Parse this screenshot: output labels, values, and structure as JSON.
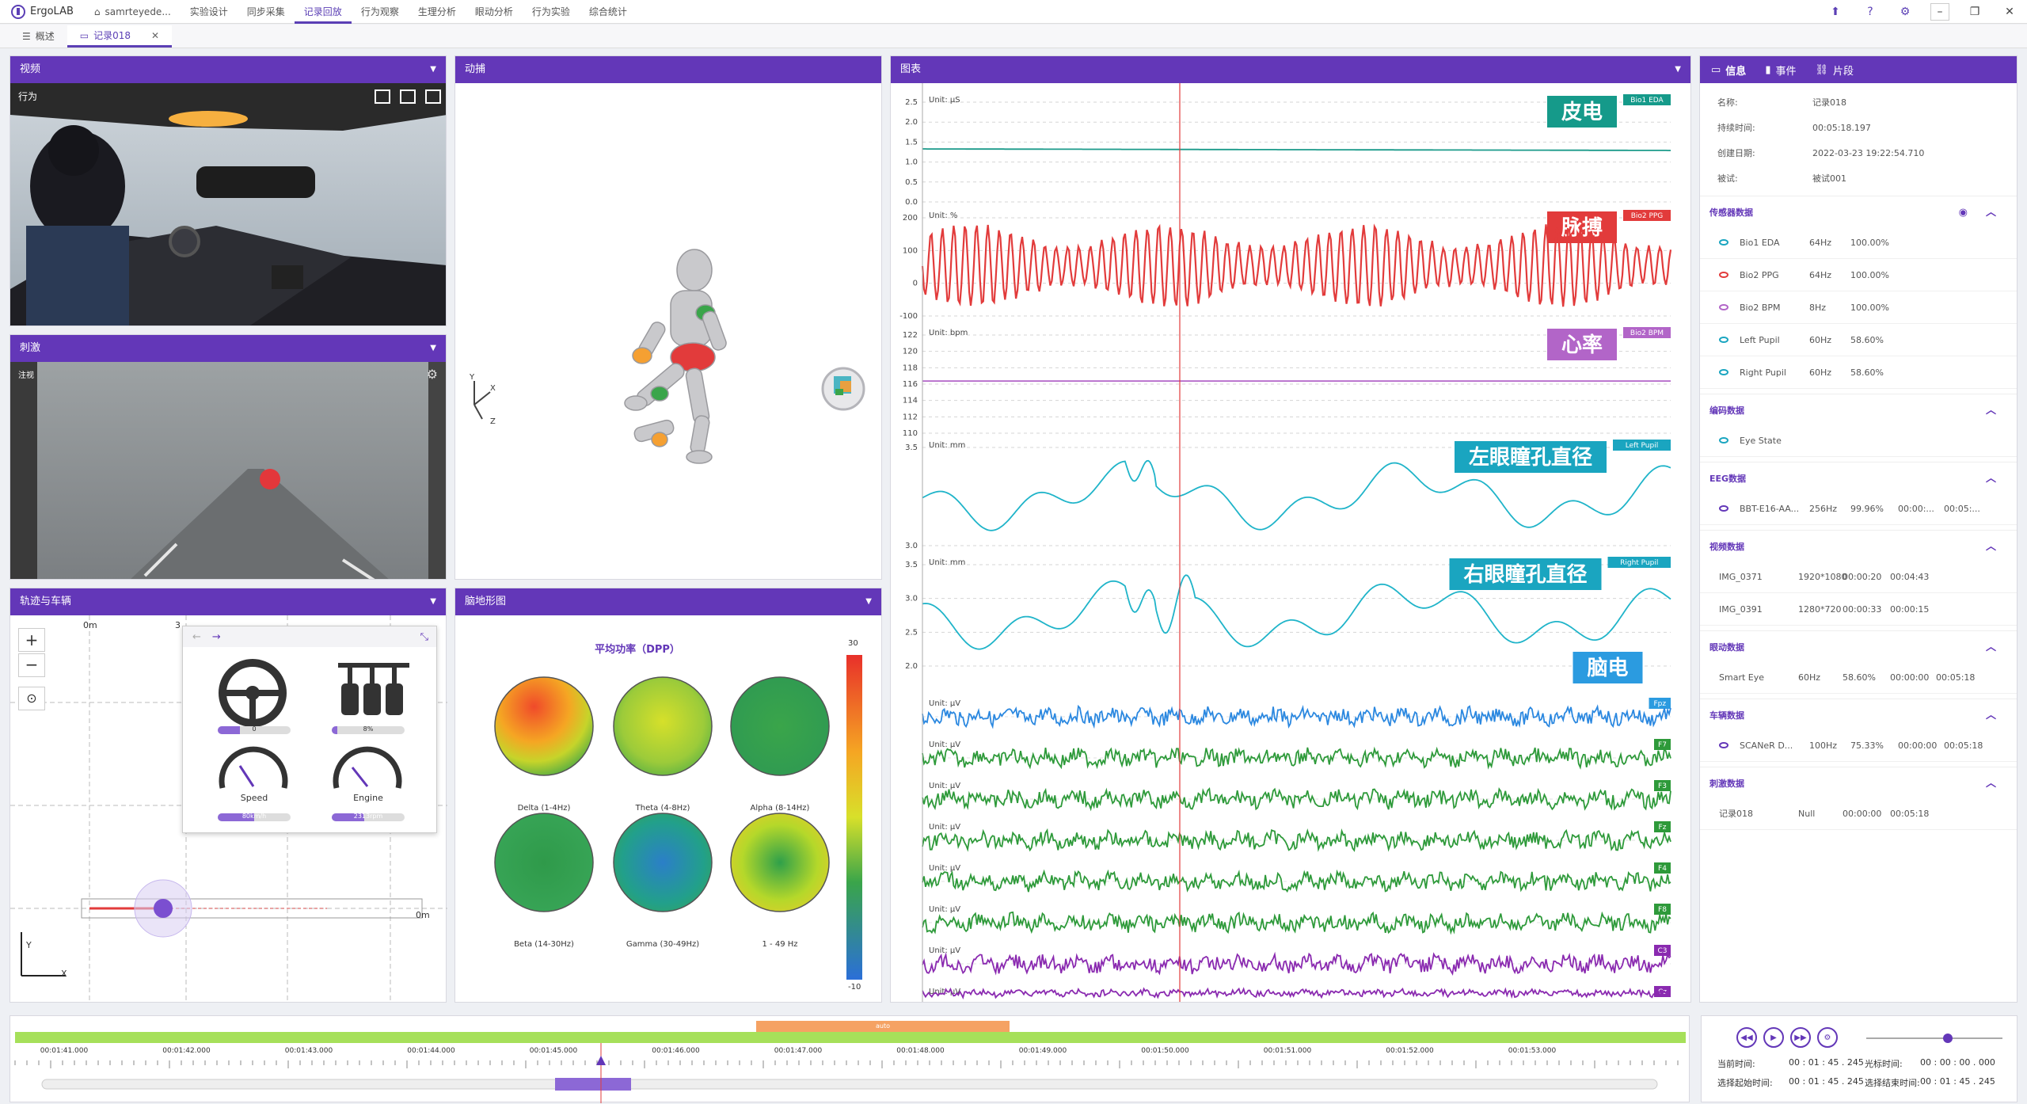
{
  "app": {
    "name": "ErgoLAB"
  },
  "menu": [
    "samrteyede...",
    "实验设计",
    "同步采集",
    "记录回放",
    "行为观察",
    "生理分析",
    "眼动分析",
    "行为实验",
    "综合统计"
  ],
  "tabs": [
    {
      "label": "概述"
    },
    {
      "label": "记录018"
    }
  ],
  "panels": {
    "video": {
      "title": "视频",
      "sublabel": "行为"
    },
    "stimulus": {
      "title": "刺激",
      "sublabel": "注视"
    },
    "motion": {
      "title": "动捕",
      "axes": {
        "x": "X",
        "y": "Y",
        "z": "Z"
      }
    },
    "track": {
      "title": "轨迹与车辆",
      "zero_top": "0m",
      "three": "3",
      "zero_bottom": "0m",
      "x_axis": "X",
      "y_axis": "Y"
    },
    "topo": {
      "title": "脑地形图",
      "subtitle": "平均功率（DPP）",
      "scale_max": "30",
      "scale_min": "-10",
      "maps": [
        {
          "label": "Delta (1-4Hz)"
        },
        {
          "label": "Theta (4-8Hz)"
        },
        {
          "label": "Alpha (8-14Hz)"
        },
        {
          "label": "Beta (14-30Hz)"
        },
        {
          "label": "Gamma (30-49Hz)"
        },
        {
          "label": "1  - 49 Hz"
        }
      ]
    },
    "chart": {
      "title": "图表"
    }
  },
  "vehicle": {
    "steer_value": "0",
    "brake_value": "8%",
    "speed_label": "Speed",
    "speed_value": "80km/h",
    "engine_label": "Engine",
    "engine_value": "2313rpm",
    "steer_fraction": 0.3,
    "brake_fraction": 0.08,
    "speed_fraction": 0.5,
    "engine_fraction": 0.45
  },
  "chart_data": {
    "type": "line",
    "cursor_time": "00:01:45.245",
    "channels": [
      {
        "name": "皮电",
        "tag": "Bio1 EDA",
        "unit": "Unit: μS",
        "ticks": [
          "2.5",
          "2.0",
          "1.5",
          "1.0",
          "0.5",
          "0.0"
        ],
        "color": "#1a9a8a",
        "label_bg": "#159a8a"
      },
      {
        "name": "脉搏",
        "tag": "Bio2 PPG",
        "unit": "Unit: %",
        "ticks": [
          "200",
          "100",
          "0",
          "-100"
        ],
        "color": "#e23b3b",
        "label_bg": "#e23b3b"
      },
      {
        "name": "心率",
        "tag": "Bio2 BPM",
        "unit": "Unit: bpm",
        "ticks": [
          "122",
          "120",
          "118",
          "116",
          "114",
          "112",
          "110"
        ],
        "color": "#b265c8",
        "label_bg": "#b265c8"
      },
      {
        "name": "左眼瞳孔直径",
        "tag": "Left Pupil",
        "unit": "Unit: mm",
        "ticks": [
          "3.5",
          "3.0"
        ],
        "color": "#1fb4c9",
        "label_bg": "#1aa5c0"
      },
      {
        "name": "右眼瞳孔直径",
        "tag": "Right Pupil",
        "unit": "Unit: mm",
        "ticks": [
          "3.5",
          "3.0",
          "2.5",
          "2.0"
        ],
        "color": "#1fb4c9",
        "label_bg": "#1aa5c0"
      },
      {
        "name": "脑电",
        "tag": "Fpz",
        "unit": "Unit: μV",
        "ticks": [],
        "color": "#2b88e0",
        "label_bg": "#2b9be0"
      },
      {
        "name": "",
        "tag": "F7",
        "unit": "Unit: μV",
        "ticks": [],
        "color": "#2e9a3a",
        "label_bg": "#2e9a3a"
      },
      {
        "name": "",
        "tag": "F3",
        "unit": "Unit: μV",
        "ticks": [],
        "color": "#2e9a3a",
        "label_bg": "#2e9a3a"
      },
      {
        "name": "",
        "tag": "Fz",
        "unit": "Unit: μV",
        "ticks": [],
        "color": "#2e9a3a",
        "label_bg": "#2e9a3a"
      },
      {
        "name": "",
        "tag": "F4",
        "unit": "Unit: μV",
        "ticks": [],
        "color": "#2e9a3a",
        "label_bg": "#2e9a3a"
      },
      {
        "name": "",
        "tag": "F8",
        "unit": "Unit: μV",
        "ticks": [],
        "color": "#2e9a3a",
        "label_bg": "#2e9a3a"
      },
      {
        "name": "",
        "tag": "C3",
        "unit": "Unit: μV",
        "ticks": [],
        "color": "#8a2ab0",
        "label_bg": "#8a2ab0"
      },
      {
        "name": "",
        "tag": "Cz",
        "unit": "Unit: μV",
        "ticks": [],
        "color": "#8a2ab0",
        "label_bg": "#8a2ab0"
      }
    ]
  },
  "info": {
    "tabs": [
      "信息",
      "事件",
      "片段"
    ],
    "fields": [
      {
        "k": "名称:",
        "v": "记录018"
      },
      {
        "k": "持续时间:",
        "v": "00:05:18.197"
      },
      {
        "k": "创建日期:",
        "v": "2022-03-23 19:22:54.710"
      },
      {
        "k": "被试:",
        "v": "被试001"
      }
    ],
    "sections": [
      {
        "title": "传感器数据",
        "eye": true,
        "rows": [
          {
            "eye": "#1aa5c0",
            "cols": [
              "Bio1 EDA",
              "64Hz",
              "100.00%"
            ]
          },
          {
            "eye": "#e23b3b",
            "cols": [
              "Bio2 PPG",
              "64Hz",
              "100.00%"
            ]
          },
          {
            "eye": "#b265c8",
            "cols": [
              "Bio2 BPM",
              "8Hz",
              "100.00%"
            ]
          },
          {
            "eye": "#1aa5c0",
            "cols": [
              "Left Pupil",
              "60Hz",
              "58.60%"
            ]
          },
          {
            "eye": "#1aa5c0",
            "cols": [
              "Right Pupil",
              "60Hz",
              "58.60%"
            ]
          }
        ]
      },
      {
        "title": "编码数据",
        "rows": [
          {
            "eye": "#1aa5c0",
            "cols": [
              "Eye State"
            ]
          }
        ]
      },
      {
        "title": "EEG数据",
        "rows": [
          {
            "eye": "#6337b8",
            "cols": [
              "BBT-E16-AA...",
              "256Hz",
              "99.96%",
              "00:00:...",
              "00:05:..."
            ]
          }
        ]
      },
      {
        "title": "视频数据",
        "rows": [
          {
            "cols": [
              "IMG_0371",
              "1920*1080",
              "00:00:20",
              "00:04:43"
            ]
          },
          {
            "cols": [
              "IMG_0391",
              "1280*720",
              "00:00:33",
              "00:00:15"
            ]
          }
        ]
      },
      {
        "title": "眼动数据",
        "rows": [
          {
            "cols": [
              "Smart Eye",
              "60Hz",
              "58.60%",
              "00:00:00",
              "00:05:18"
            ]
          }
        ]
      },
      {
        "title": "车辆数据",
        "rows": [
          {
            "eye": "#6337b8",
            "cols": [
              "SCANeR D...",
              "100Hz",
              "75.33%",
              "00:00:00",
              "00:05:18"
            ]
          }
        ]
      },
      {
        "title": "刺激数据",
        "rows": [
          {
            "cols": [
              "记录018",
              "Null",
              "00:00:00",
              "00:05:18"
            ]
          }
        ]
      }
    ]
  },
  "timeline": {
    "segment_label": "auto",
    "ticks": [
      "00:01:41.000",
      "00:01:42.000",
      "00:01:43.000",
      "00:01:44.000",
      "00:01:45.000",
      "00:01:46.000",
      "00:01:47.000",
      "00:01:48.000",
      "00:01:49.000",
      "00:01:50.000",
      "00:01:51.000",
      "00:01:52.000",
      "00:01:53.000"
    ]
  },
  "player": {
    "current_label": "当前时间:",
    "current_value": "00 : 01 : 45 . 245",
    "cursor_label": "光标时间:",
    "cursor_value": "00 : 00 : 00 . 000",
    "sel_start_label": "选择起始时间:",
    "sel_start_value": "00 : 01 : 45 . 245",
    "sel_end_label": "选择结束时间:",
    "sel_end_value": "00 : 01 : 45 . 245",
    "volume_fraction": 0.6
  },
  "colors": {
    "accent": "#6337b8"
  }
}
